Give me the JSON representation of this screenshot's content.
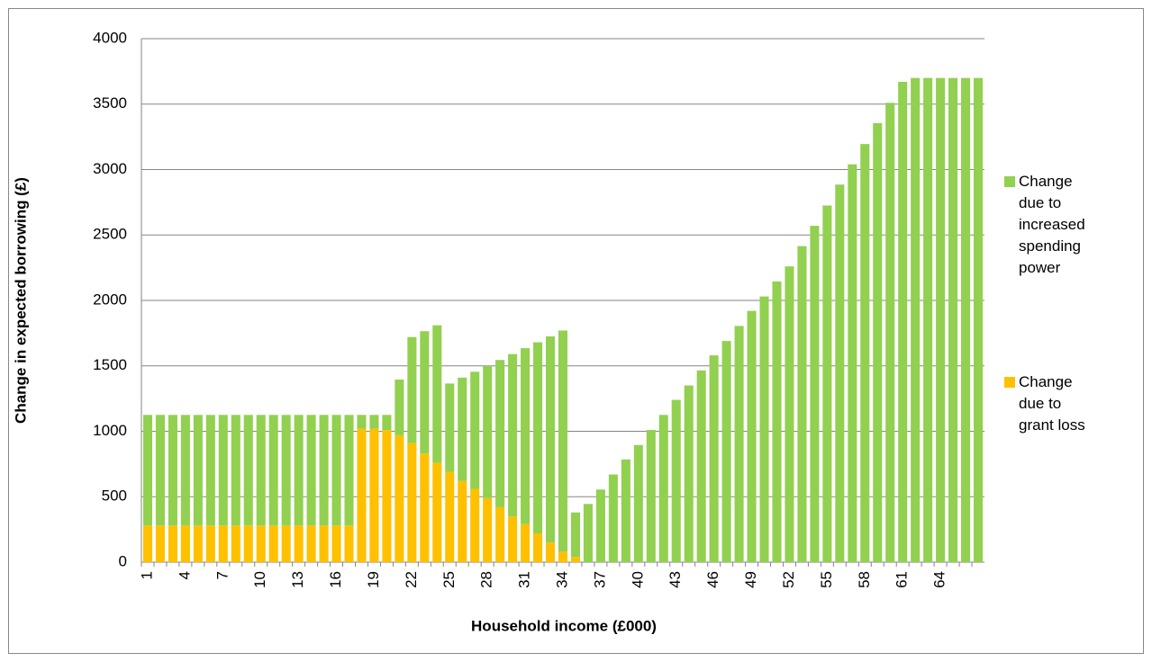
{
  "chart_data": {
    "type": "stacked-bar",
    "x_label": "Household income (£000)",
    "y_label": "Change in expected borrowing (£)",
    "categories": [
      "1",
      null,
      null,
      "4",
      null,
      null,
      "7",
      null,
      null,
      "10",
      null,
      null,
      "13",
      null,
      null,
      "16",
      null,
      null,
      "19",
      null,
      null,
      "22",
      null,
      null,
      "25",
      null,
      null,
      "28",
      null,
      null,
      "31",
      null,
      null,
      "34",
      null,
      null,
      "37",
      null,
      null,
      "40",
      null,
      null,
      "43",
      null,
      null,
      "46",
      null,
      null,
      "49",
      null,
      null,
      "52",
      null,
      null,
      "55",
      null,
      null,
      "58",
      null,
      null,
      "61",
      null,
      null,
      "64",
      null,
      null,
      null
    ],
    "series": [
      {
        "name": "Change due to grant loss",
        "color": "#ffc000",
        "values": [
          280,
          280,
          280,
          280,
          280,
          280,
          280,
          280,
          280,
          280,
          280,
          280,
          280,
          280,
          280,
          280,
          280,
          1020,
          1020,
          1010,
          970,
          910,
          830,
          760,
          690,
          620,
          560,
          490,
          420,
          350,
          290,
          220,
          150,
          80,
          40,
          0,
          0,
          0,
          0,
          0,
          0,
          0,
          0,
          0,
          0,
          0,
          0,
          0,
          0,
          0,
          0,
          0,
          0,
          0,
          0,
          0,
          0,
          0,
          0,
          0,
          0,
          0,
          0,
          0,
          0,
          0,
          0
        ]
      },
      {
        "name": "Change due to increased spending power",
        "color": "#92d050",
        "values": [
          845,
          845,
          845,
          845,
          845,
          845,
          845,
          845,
          845,
          845,
          845,
          845,
          845,
          845,
          845,
          845,
          845,
          105,
          105,
          115,
          425,
          810,
          935,
          1050,
          675,
          790,
          895,
          1010,
          1125,
          1240,
          1345,
          1460,
          1575,
          1690,
          340,
          445,
          555,
          670,
          785,
          895,
          1010,
          1125,
          1240,
          1350,
          1465,
          1580,
          1690,
          1805,
          1920,
          2030,
          2145,
          2260,
          2415,
          2570,
          2725,
          2885,
          3040,
          3195,
          3355,
          3510,
          3670,
          3700,
          3700,
          3700,
          3700,
          3700,
          3700
        ]
      }
    ],
    "ylim": [
      0,
      4000
    ],
    "yticks": [
      0,
      500,
      1000,
      1500,
      2000,
      2500,
      3000,
      3500,
      4000
    ],
    "grid": true
  }
}
